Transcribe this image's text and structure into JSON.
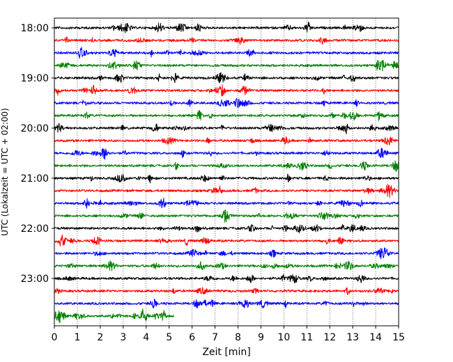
{
  "chart_data": {
    "type": "line",
    "title": "",
    "xlabel": "Zeit  [min]",
    "ylabel": "UTC (Lokalzeit = UTC + 02:00)",
    "xlim": [
      0,
      15
    ],
    "x_ticks": [
      "0",
      "1",
      "2",
      "3",
      "4",
      "5",
      "6",
      "7",
      "8",
      "9",
      "10",
      "11",
      "12",
      "13",
      "14",
      "15"
    ],
    "y_tick_labels": [
      "18:00",
      "19:00",
      "20:00",
      "21:00",
      "22:00",
      "23:00"
    ],
    "grid": "vertical dotted at each minute",
    "trace_colors": [
      "#000000",
      "#ff0000",
      "#0000ff",
      "#008000"
    ],
    "traces": [
      {
        "start": "18:00",
        "duration_min": 15
      },
      {
        "start": "18:15",
        "duration_min": 15
      },
      {
        "start": "18:30",
        "duration_min": 15
      },
      {
        "start": "18:45",
        "duration_min": 15
      },
      {
        "start": "19:00",
        "duration_min": 15
      },
      {
        "start": "19:15",
        "duration_min": 15
      },
      {
        "start": "19:30",
        "duration_min": 15
      },
      {
        "start": "19:45",
        "duration_min": 15
      },
      {
        "start": "20:00",
        "duration_min": 15
      },
      {
        "start": "20:15",
        "duration_min": 15
      },
      {
        "start": "20:30",
        "duration_min": 15
      },
      {
        "start": "20:45",
        "duration_min": 15
      },
      {
        "start": "21:00",
        "duration_min": 15
      },
      {
        "start": "21:15",
        "duration_min": 15
      },
      {
        "start": "21:30",
        "duration_min": 15
      },
      {
        "start": "21:45",
        "duration_min": 15
      },
      {
        "start": "22:00",
        "duration_min": 15
      },
      {
        "start": "22:15",
        "duration_min": 15
      },
      {
        "start": "22:30",
        "duration_min": 15
      },
      {
        "start": "22:45",
        "duration_min": 15
      },
      {
        "start": "23:00",
        "duration_min": 15
      },
      {
        "start": "23:15",
        "duration_min": 15
      },
      {
        "start": "23:30",
        "duration_min": 15
      },
      {
        "start": "23:45",
        "duration_min": 5.2
      }
    ]
  }
}
